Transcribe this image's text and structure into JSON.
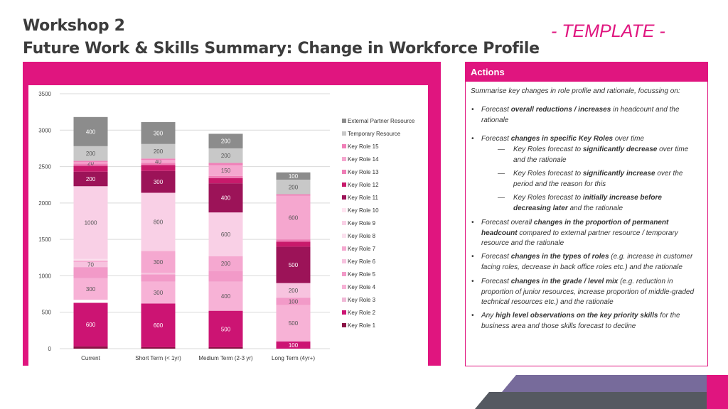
{
  "header": {
    "title_line1": "Workshop 2",
    "title_line2": "Future Work & Skills Summary: Change in Workforce Profile",
    "template_tag": "- TEMPLATE -"
  },
  "actions": {
    "header": "Actions",
    "intro": "Summarise key changes in role profile and rationale, focussing on:",
    "bullets": [
      {
        "level": 1,
        "parts": [
          {
            "t": "Forecast "
          },
          {
            "t": "overall reductions / increases",
            "b": true
          },
          {
            "t": " in headcount and the rationale"
          }
        ]
      },
      {
        "level": 1,
        "parts": [
          {
            "t": "Forecast "
          },
          {
            "t": "changes in specific Key Roles",
            "b": true
          },
          {
            "t": " over time"
          }
        ]
      },
      {
        "level": 2,
        "parts": [
          {
            "t": "Key Roles forecast to "
          },
          {
            "t": "significantly decrease",
            "b": true
          },
          {
            "t": " over time and the rationale"
          }
        ]
      },
      {
        "level": 2,
        "parts": [
          {
            "t": "Key Roles forecast to "
          },
          {
            "t": "significantly increase",
            "b": true
          },
          {
            "t": " over the period and the reason for this"
          }
        ]
      },
      {
        "level": 2,
        "parts": [
          {
            "t": "Key Roles forecast to "
          },
          {
            "t": "initially increase before decreasing later",
            "b": true
          },
          {
            "t": " and the rationale"
          }
        ]
      },
      {
        "level": 1,
        "parts": [
          {
            "t": "Forecast overall "
          },
          {
            "t": "changes in the proportion of permanent headcount",
            "b": true
          },
          {
            "t": " compared to external partner resource / temporary resource and the rationale"
          }
        ]
      },
      {
        "level": 1,
        "parts": [
          {
            "t": "Forecast "
          },
          {
            "t": "changes in the types of roles",
            "b": true
          },
          {
            "t": " (e.g. increase in customer facing roles, decrease in back office roles etc.) and the rationale"
          }
        ]
      },
      {
        "level": 1,
        "parts": [
          {
            "t": "Forecast "
          },
          {
            "t": "changes in the grade / level mix",
            "b": true
          },
          {
            "t": " (e.g. reduction in proportion of junior resources, increase proportion of middle-graded technical resources etc.) and the rationale"
          }
        ]
      },
      {
        "level": 1,
        "parts": [
          {
            "t": "Any "
          },
          {
            "t": "high level observations on the key priority skills",
            "b": true
          },
          {
            "t": " for the business area and those skills forecast to decline"
          }
        ]
      }
    ]
  },
  "chart_data": {
    "type": "bar",
    "stacked": true,
    "categories": [
      "Current",
      "Short Term (< 1yr)",
      "Medium Term (2-3 yr)",
      "Long Term (4yr+)"
    ],
    "ylim": [
      0,
      3500
    ],
    "yticks": [
      0,
      500,
      1000,
      1500,
      2000,
      2500,
      3000,
      3500
    ],
    "grid": true,
    "legend_position": "right",
    "series": [
      {
        "name": "Key Role 1",
        "color": "#8a1245",
        "values": [
          30,
          20,
          20,
          0
        ],
        "labels": [
          "",
          "",
          "",
          ""
        ]
      },
      {
        "name": "Key Role 2",
        "color": "#cc1473",
        "values": [
          600,
          600,
          500,
          100
        ],
        "labels": [
          "600",
          "600",
          "500",
          "100"
        ]
      },
      {
        "name": "Key Role 3",
        "color": "#ffffff",
        "values": [
          40,
          0,
          0,
          0
        ],
        "labels": [
          "",
          "",
          "",
          ""
        ]
      },
      {
        "name": "Key Role 4",
        "color": "#f7b2d6",
        "values": [
          300,
          300,
          400,
          500
        ],
        "labels": [
          "300",
          "300",
          "400",
          "500"
        ]
      },
      {
        "name": "Key Role 5",
        "color": "#f29ac8",
        "values": [
          150,
          100,
          150,
          100
        ],
        "labels": [
          "",
          "",
          "",
          "100"
        ]
      },
      {
        "name": "Key Role 6",
        "color": "#f7c3df",
        "values": [
          70,
          20,
          0,
          200
        ],
        "labels": [
          "70",
          "",
          "",
          "200"
        ]
      },
      {
        "name": "Key Role 7",
        "color": "#f5a8d0",
        "values": [
          20,
          300,
          200,
          0
        ],
        "labels": [
          "",
          "300",
          "200",
          ""
        ]
      },
      {
        "name": "Key Role 8",
        "color": "#fbe0ee",
        "values": [
          20,
          0,
          0,
          0
        ],
        "labels": [
          "",
          "",
          "",
          ""
        ]
      },
      {
        "name": "Key Role 9",
        "color": "#f9d0e6",
        "values": [
          1000,
          800,
          600,
          0
        ],
        "labels": [
          "1000",
          "800",
          "600",
          ""
        ]
      },
      {
        "name": "Key Role 10",
        "color": "#ffe4f1",
        "values": [
          0,
          0,
          0,
          0
        ],
        "labels": [
          "",
          "",
          "",
          ""
        ]
      },
      {
        "name": "Key Role 11",
        "color": "#9c1358",
        "values": [
          200,
          300,
          400,
          500
        ],
        "labels": [
          "200",
          "300",
          "400",
          "500"
        ]
      },
      {
        "name": "Key Role 12",
        "color": "#c81a6b",
        "values": [
          80,
          80,
          70,
          70
        ],
        "labels": [
          "",
          "",
          "",
          ""
        ]
      },
      {
        "name": "Key Role 13",
        "color": "#ef7db6",
        "values": [
          30,
          30,
          30,
          30
        ],
        "labels": [
          "",
          "",
          "",
          ""
        ]
      },
      {
        "name": "Key Role 14",
        "color": "#f5a7cf",
        "values": [
          20,
          40,
          150,
          600
        ],
        "labels": [
          "20",
          "40",
          "150",
          "600"
        ]
      },
      {
        "name": "Key Role 15",
        "color": "#f080b8",
        "values": [
          20,
          20,
          30,
          20
        ],
        "labels": [
          "",
          "",
          "",
          ""
        ]
      },
      {
        "name": "Temporary Resource",
        "color": "#c8c8c8",
        "values": [
          200,
          200,
          200,
          200
        ],
        "labels": [
          "200",
          "200",
          "200",
          "200"
        ]
      },
      {
        "name": "External Partner Resource",
        "color": "#8c8c8c",
        "values": [
          400,
          300,
          200,
          100
        ],
        "labels": [
          "400",
          "300",
          "200",
          "100"
        ]
      }
    ]
  }
}
